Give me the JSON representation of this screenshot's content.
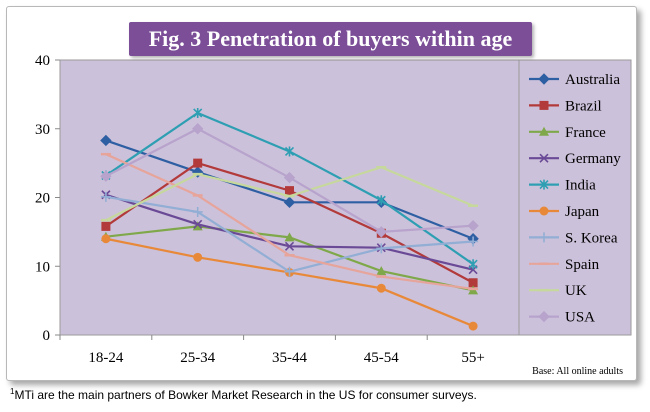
{
  "chart_data": {
    "type": "line",
    "title": "Fig. 3 Penetration of buyers within age",
    "categories": [
      "18-24",
      "25-34",
      "35-44",
      "45-54",
      "55+"
    ],
    "ylim": [
      0,
      40
    ],
    "yticks": [
      0,
      10,
      20,
      30,
      40
    ],
    "xlabel": "",
    "ylabel": "",
    "grid": false,
    "legend_position": "right",
    "note": "Base: All online adults",
    "series": [
      {
        "name": "Australia",
        "color": "#2e5fa3",
        "marker": "diamond",
        "values": [
          28.3,
          23.7,
          19.3,
          19.3,
          14.0
        ]
      },
      {
        "name": "Brazil",
        "color": "#b23a3a",
        "marker": "square",
        "values": [
          15.8,
          25.0,
          21.0,
          14.8,
          7.6
        ]
      },
      {
        "name": "France",
        "color": "#7fa84a",
        "marker": "triangle",
        "values": [
          14.3,
          15.8,
          14.2,
          9.3,
          6.5
        ]
      },
      {
        "name": "Germany",
        "color": "#6a4a96",
        "marker": "x",
        "values": [
          20.4,
          16.1,
          12.9,
          12.7,
          9.5
        ]
      },
      {
        "name": "India",
        "color": "#2e9fb3",
        "marker": "star",
        "values": [
          23.2,
          32.3,
          26.7,
          19.6,
          10.3
        ]
      },
      {
        "name": "Japan",
        "color": "#e8893a",
        "marker": "circle",
        "values": [
          14.0,
          11.3,
          9.1,
          6.8,
          1.3
        ]
      },
      {
        "name": "S. Korea",
        "color": "#92aed4",
        "marker": "plus",
        "values": [
          20.1,
          17.9,
          9.2,
          12.6,
          13.6
        ]
      },
      {
        "name": "Spain",
        "color": "#e6a49a",
        "marker": "dash",
        "values": [
          26.3,
          20.3,
          11.6,
          8.5,
          6.7
        ]
      },
      {
        "name": "UK",
        "color": "#c6d89c",
        "marker": "dash",
        "values": [
          16.7,
          23.4,
          20.2,
          24.4,
          18.8
        ]
      },
      {
        "name": "USA",
        "color": "#b7a3cc",
        "marker": "diamond",
        "values": [
          23.1,
          30.0,
          22.9,
          15.0,
          15.9
        ]
      }
    ]
  },
  "footnote": {
    "mark": "1",
    "text": "MTi are the main partners of Bowker Market Research in the US for consumer surveys."
  }
}
